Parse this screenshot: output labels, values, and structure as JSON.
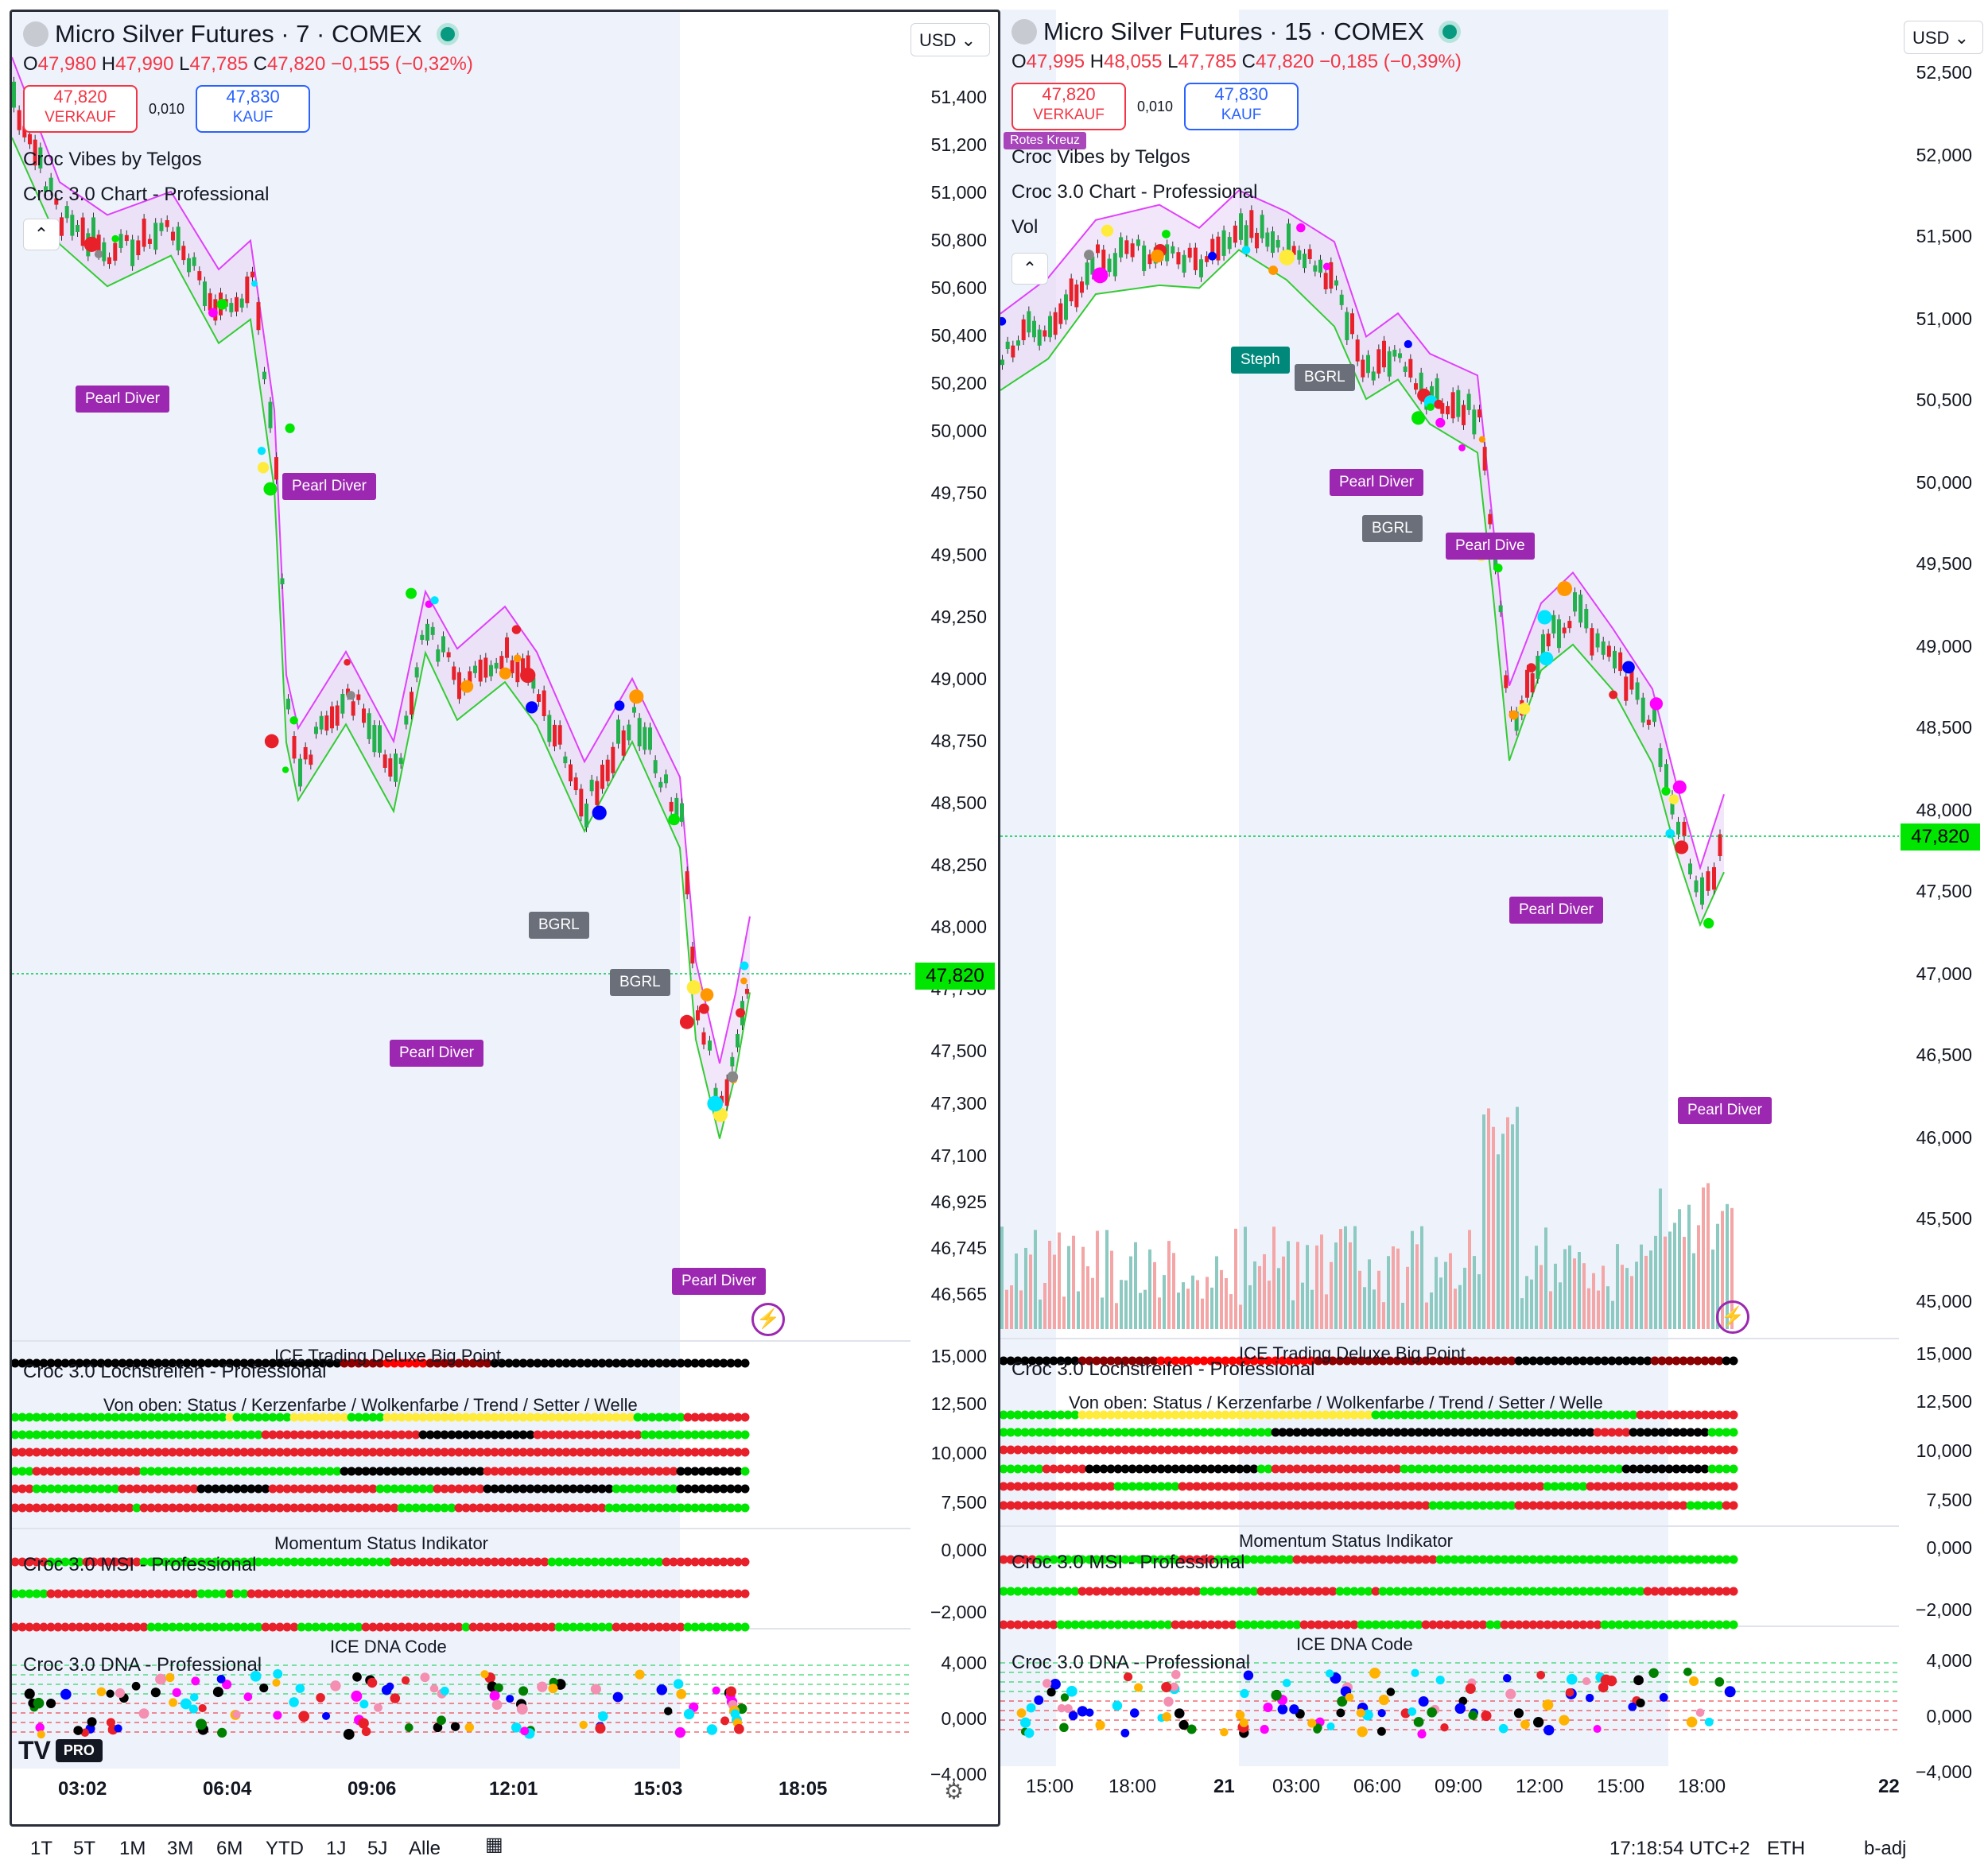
{
  "left": {
    "symbol": "Micro Silver Futures · 7 · COMEX",
    "ohlc": {
      "o_label": "O",
      "o": "47,980",
      "h_label": "H",
      "h": "47,990",
      "l_label": "L",
      "l": "47,785",
      "c_label": "C",
      "c": "47,820",
      "change": "−0,155 (−0,32%)"
    },
    "sell": {
      "price": "47,820",
      "label": "VERKAUF"
    },
    "buy": {
      "price": "47,830",
      "label": "KAUF"
    },
    "spread": "0,010",
    "currency": "USD",
    "indicators": [
      "Croc Vibes by Telgos",
      "Croc 3.0 Chart - Professional"
    ],
    "price_ticks": [
      "51,400",
      "51,200",
      "51,000",
      "50,800",
      "50,600",
      "50,400",
      "50,200",
      "50,000",
      "49,750",
      "49,500",
      "49,250",
      "49,000",
      "48,750",
      "48,500",
      "48,250",
      "48,000",
      "47,750",
      "47,500",
      "47,300",
      "47,100",
      "46,925",
      "46,745",
      "46,565"
    ],
    "last_price": "47,820",
    "signals": [
      "Pearl Diver",
      "Pearl Diver",
      "BGRL",
      "BGRL",
      "Pearl Diver",
      "Pearl Diver"
    ],
    "time_ticks": [
      "03:02",
      "06:04",
      "09:06",
      "12:01",
      "15:03",
      "18:05"
    ]
  },
  "right": {
    "symbol": "Micro Silver Futures · 15 · COMEX",
    "ohlc": {
      "o_label": "O",
      "o": "47,995",
      "h_label": "H",
      "h": "48,055",
      "l_label": "L",
      "l": "47,785",
      "c_label": "C",
      "c": "47,820",
      "change": "−0,185 (−0,39%)"
    },
    "sell": {
      "price": "47,820",
      "label": "VERKAUF"
    },
    "buy": {
      "price": "47,830",
      "label": "KAUF"
    },
    "spread": "0,010",
    "currency": "USD",
    "indicators": [
      "Croc Vibes by Telgos",
      "Croc 3.0 Chart - Professional",
      "Vol"
    ],
    "price_ticks": [
      "52,500",
      "52,000",
      "51,500",
      "51,000",
      "50,500",
      "50,000",
      "49,500",
      "49,000",
      "48,500",
      "48,000",
      "47,500",
      "47,000",
      "46,500",
      "46,000",
      "45,500",
      "45,000"
    ],
    "last_price": "47,820",
    "signals": [
      "Steph",
      "BGRL",
      "Pearl Diver",
      "BGRL",
      "Pearl Dive",
      "Pearl Diver",
      "Pearl Diver"
    ],
    "badge_overlay": "Rotes Kreuz",
    "time_ticks": [
      "15:00",
      "18:00",
      "21",
      "03:00",
      "06:00",
      "09:00",
      "12:00",
      "15:00",
      "18:00",
      "22"
    ]
  },
  "sub": {
    "lochstreifen": "Croc 3.0 Lochstreifen - Professional",
    "ice_big_point": "ICE Trading Deluxe Big Point",
    "von_oben": "Von oben: Status / Kerzenfarbe / Wolkenfarbe / Trend / Setter / Welle",
    "lochstreifen_ticks": [
      "15,000",
      "12,500",
      "10,000",
      "7,500"
    ],
    "msi": "Croc 3.0 MSI - Professional",
    "momentum": "Momentum Status Indikator",
    "msi_ticks": [
      "0,000",
      "−2,000"
    ],
    "dna": "Croc 3.0 DNA - Professional",
    "dna_code": "ICE DNA Code",
    "dna_ticks": [
      "4,000",
      "0,000",
      "−4,000"
    ]
  },
  "bottom": {
    "ranges": [
      "1T",
      "5T",
      "1M",
      "3M",
      "6M",
      "YTD",
      "1J",
      "5J",
      "Alle"
    ],
    "clock": "17:18:54 UTC+2",
    "session": "ETH",
    "adj": "b-adj"
  },
  "logo": {
    "mark": "TV",
    "badge": "PRO"
  }
}
